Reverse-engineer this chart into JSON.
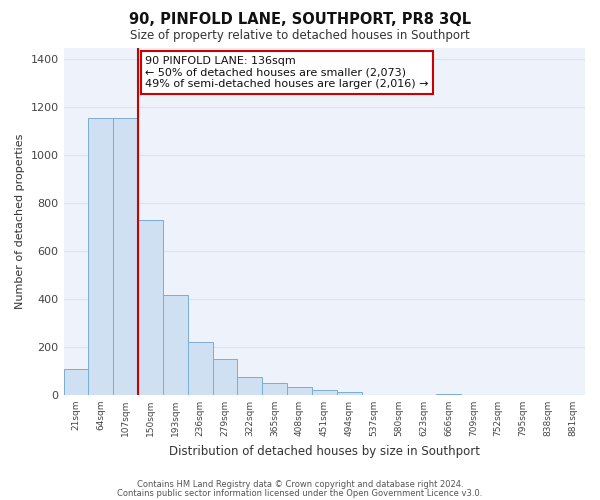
{
  "title": "90, PINFOLD LANE, SOUTHPORT, PR8 3QL",
  "subtitle": "Size of property relative to detached houses in Southport",
  "xlabel": "Distribution of detached houses by size in Southport",
  "ylabel": "Number of detached properties",
  "bar_labels": [
    "21sqm",
    "64sqm",
    "107sqm",
    "150sqm",
    "193sqm",
    "236sqm",
    "279sqm",
    "322sqm",
    "365sqm",
    "408sqm",
    "451sqm",
    "494sqm",
    "537sqm",
    "580sqm",
    "623sqm",
    "666sqm",
    "709sqm",
    "752sqm",
    "795sqm",
    "838sqm",
    "881sqm"
  ],
  "bar_values": [
    110,
    1155,
    1155,
    730,
    415,
    220,
    148,
    73,
    50,
    35,
    20,
    13,
    0,
    0,
    0,
    5,
    0,
    0,
    0,
    0,
    0
  ],
  "bar_color": "#cfe0f3",
  "bar_edge_color": "#7aaed6",
  "vline_color": "#cc0000",
  "annotation_text": "90 PINFOLD LANE: 136sqm\n← 50% of detached houses are smaller (2,073)\n49% of semi-detached houses are larger (2,016) →",
  "annotation_box_color": "#ffffff",
  "annotation_box_edge": "#cc0000",
  "ylim": [
    0,
    1450
  ],
  "yticks": [
    0,
    200,
    400,
    600,
    800,
    1000,
    1200,
    1400
  ],
  "grid_color": "#d8e4f0",
  "bg_color": "#ffffff",
  "plot_bg_color": "#edf2fb",
  "footer1": "Contains HM Land Registry data © Crown copyright and database right 2024.",
  "footer2": "Contains public sector information licensed under the Open Government Licence v3.0."
}
